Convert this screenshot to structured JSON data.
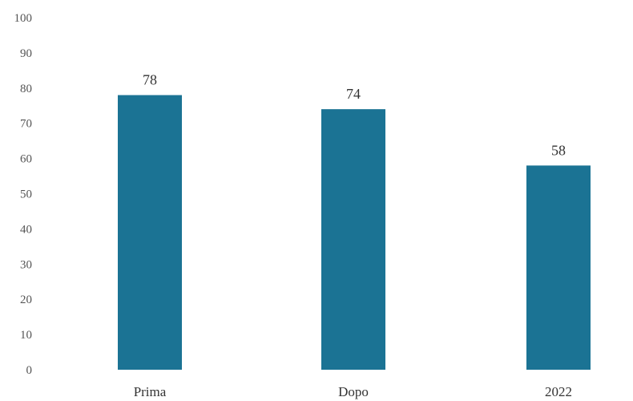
{
  "chart_data": {
    "type": "bar",
    "title": "",
    "xlabel": "",
    "ylabel": "",
    "categories": [
      "Prima",
      "Dopo",
      "2022"
    ],
    "values": [
      78,
      74,
      58
    ],
    "data_labels": [
      "78",
      "74",
      "58"
    ],
    "ylim": [
      0,
      100
    ],
    "yticks": [
      0,
      10,
      20,
      30,
      40,
      50,
      60,
      70,
      80,
      90,
      100
    ],
    "ytick_labels": [
      "0",
      "10",
      "20",
      "30",
      "40",
      "50",
      "60",
      "70",
      "80",
      "90",
      "100"
    ],
    "grid": false,
    "legend": "none",
    "bar_color": "#1b7394"
  }
}
